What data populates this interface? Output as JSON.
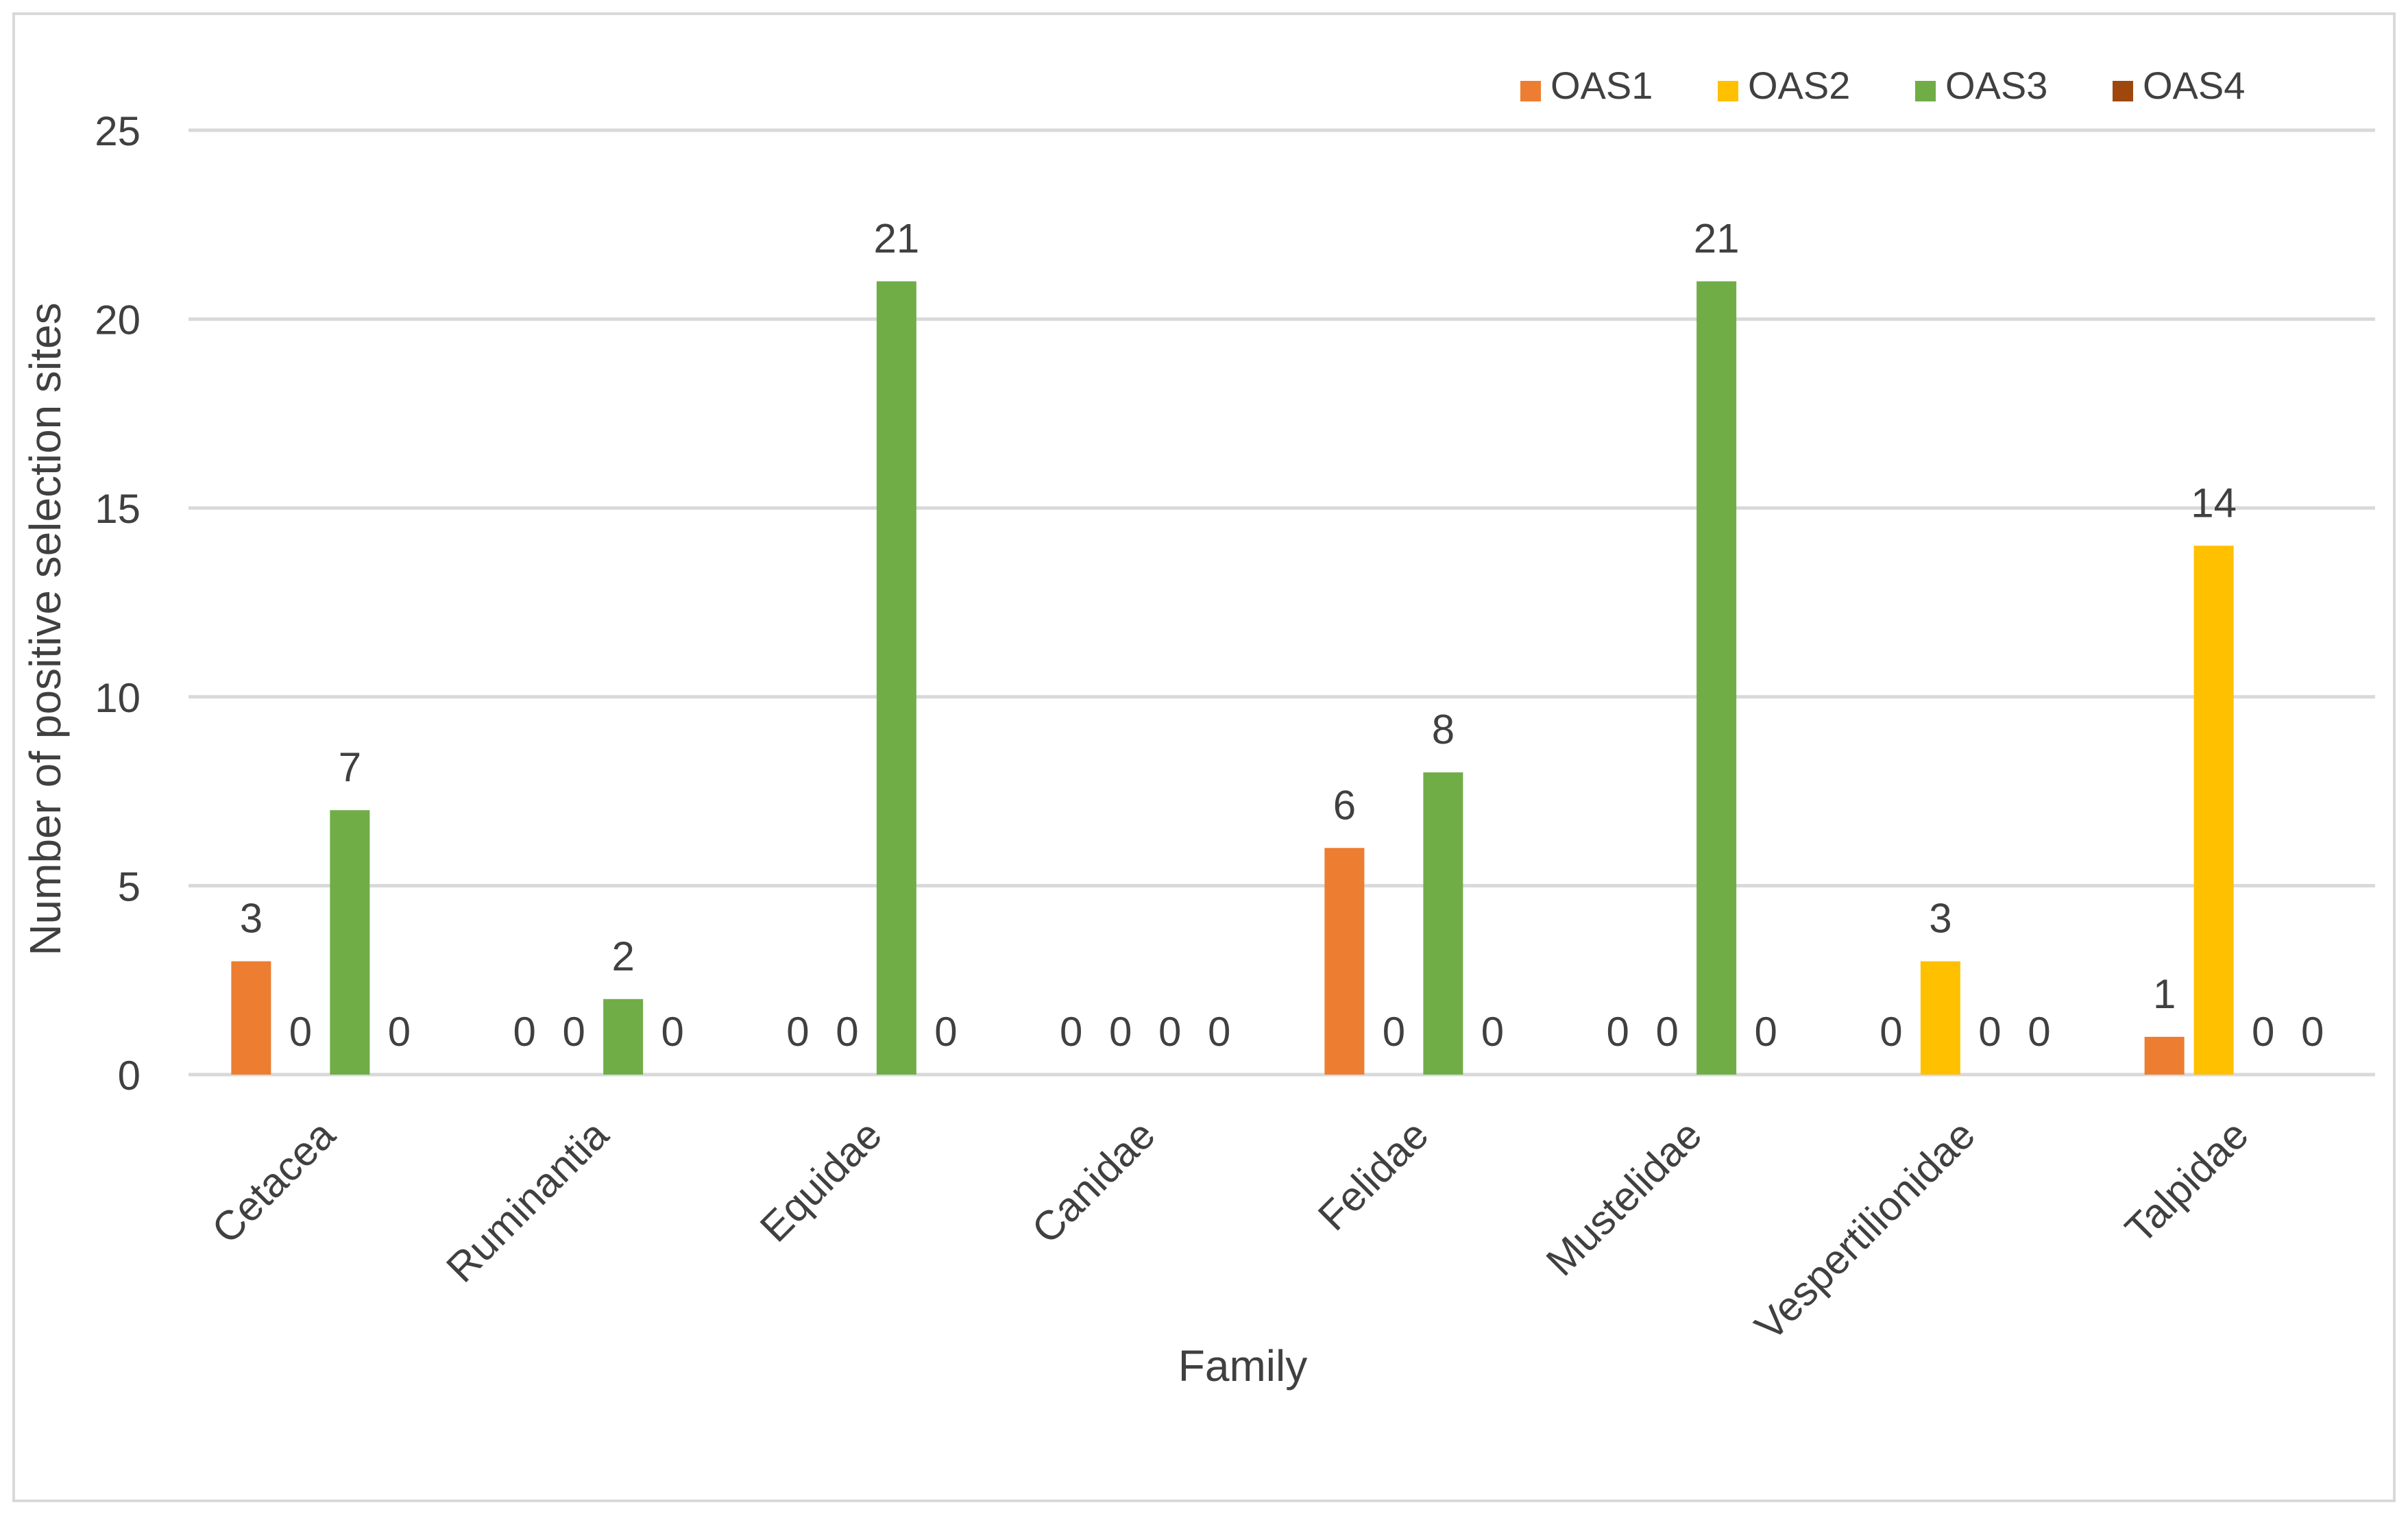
{
  "chart_data": {
    "type": "bar",
    "title": "",
    "xlabel": "Family",
    "ylabel": "Number of positive selection sites",
    "ylim": [
      0,
      25
    ],
    "yticks": [
      0,
      5,
      10,
      15,
      20,
      25
    ],
    "grid": true,
    "legend_position": "top-right",
    "categories": [
      "Cetacea",
      "Ruminantia",
      "Equidae",
      "Canidae",
      "Felidae",
      "Mustelidae",
      "Vespertilionidae",
      "Talpidae"
    ],
    "series": [
      {
        "name": "OAS1",
        "color": "#ED7D31",
        "values": [
          3,
          0,
          0,
          0,
          6,
          0,
          0,
          1
        ]
      },
      {
        "name": "OAS2",
        "color": "#FFC000",
        "values": [
          0,
          0,
          0,
          0,
          0,
          0,
          3,
          14
        ]
      },
      {
        "name": "OAS3",
        "color": "#70AD47",
        "values": [
          7,
          2,
          21,
          0,
          8,
          21,
          0,
          0
        ]
      },
      {
        "name": "OAS4",
        "color": "#9E480E",
        "values": [
          0,
          0,
          0,
          0,
          0,
          0,
          0,
          0
        ]
      }
    ],
    "data_labels": [
      [
        "3",
        "0",
        "7",
        "0"
      ],
      [
        "0",
        "0",
        "2",
        "0"
      ],
      [
        "0",
        "0",
        "21",
        "0"
      ],
      [
        "0",
        "0",
        "0",
        "0"
      ],
      [
        "6",
        "0",
        "8",
        "0"
      ],
      [
        "0",
        "0",
        "21",
        "0"
      ],
      [
        "0",
        "3",
        "0",
        "0"
      ],
      [
        "1",
        "14",
        "0",
        "0"
      ]
    ]
  }
}
